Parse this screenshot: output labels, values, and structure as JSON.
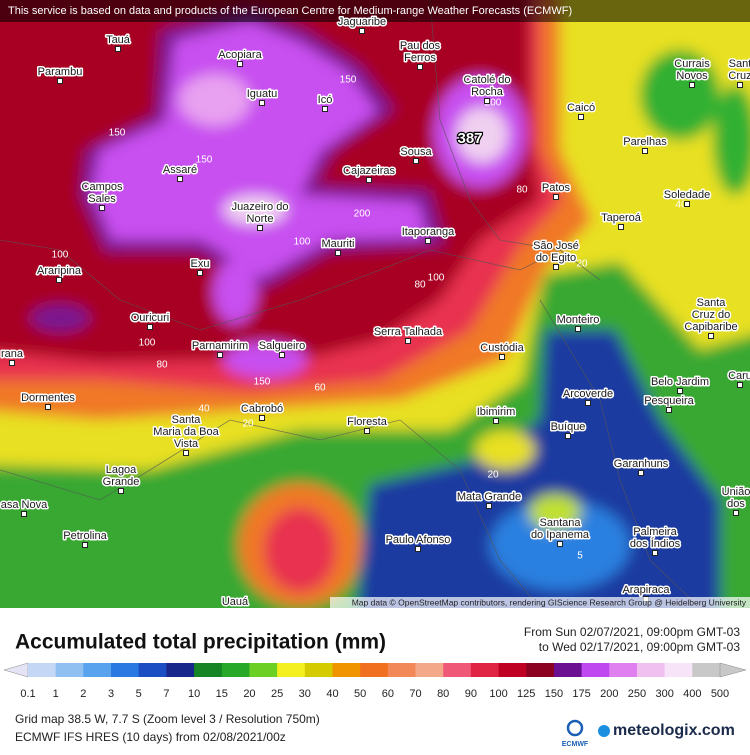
{
  "banner": "This service is based on data and products of the European Centre for Medium-range Weather Forecasts (ECMWF)",
  "attribution": "Map data © OpenStreetMap contributors, rendering GIScience Research Group @ Heidelberg University",
  "places": [
    [
      "Tauá"
    ],
    [
      "Parambu"
    ],
    [
      "Acopiara"
    ],
    [
      "Jaguaribe"
    ],
    [
      "Pau dos",
      "Ferros"
    ],
    [
      "Currais",
      "Novos"
    ],
    [
      "Sant",
      "Cruz"
    ],
    [
      "Catolé do",
      "Rocha"
    ],
    [
      "Iguatu"
    ],
    [
      "Icó"
    ],
    [
      "Caicó"
    ],
    [
      "Parelhas"
    ],
    [
      "Sousa"
    ],
    [
      "Cajazeiras"
    ],
    [
      "Assaré"
    ],
    [
      "Campos",
      "Sales"
    ],
    [
      "Patos"
    ],
    [
      "Soledade"
    ],
    [
      "Juazeiro do",
      "Norte"
    ],
    [
      "Taperoá"
    ],
    [
      "Itaporanga"
    ],
    [
      "Mauriti"
    ],
    [
      "São José",
      "do Egito"
    ],
    [
      "Araripina"
    ],
    [
      "Exu"
    ],
    [
      "Monteiro"
    ],
    [
      "Santa",
      "Cruz do",
      "Capibaribe"
    ],
    [
      "Ouricuri"
    ],
    [
      "Serra Talhada"
    ],
    [
      "Custódia"
    ],
    [
      "Parnamirim"
    ],
    [
      "Salgueiro"
    ],
    [
      "rana"
    ],
    [
      "Belo Jardim"
    ],
    [
      "Caru"
    ],
    [
      "Dormentes"
    ],
    [
      "Arcoverde"
    ],
    [
      "Pesqueira"
    ],
    [
      "Cabrobó"
    ],
    [
      "Ibimirim"
    ],
    [
      "Santa",
      "Maria da Boa",
      "Vista"
    ],
    [
      "Floresta"
    ],
    [
      "Buíque"
    ],
    [
      "Garanhuns"
    ],
    [
      "Lagoa",
      "Grande"
    ],
    [
      "Mata Grande"
    ],
    [
      "União",
      "dos"
    ],
    [
      "asa Nova"
    ],
    [
      "Santana",
      "do Ipanema"
    ],
    [
      "Petrolina"
    ],
    [
      "Paulo Afonso"
    ],
    [
      "Palmeira",
      "dos Índios"
    ],
    [
      "Arapiraca"
    ],
    [
      "Uauá"
    ]
  ],
  "contour_labels": [
    "387",
    "200",
    "150",
    "150",
    "150",
    "200",
    "100",
    "100",
    "80",
    "80",
    "40",
    "20",
    "100",
    "100",
    "80",
    "150",
    "60",
    "40",
    "20",
    "20",
    "5"
  ],
  "title": "Accumulated total precipitation (mm)",
  "period": [
    "From Sun 02/07/2021, 09:00pm GMT-03",
    "to Wed 02/17/2021, 09:00pm GMT-03"
  ],
  "legend": {
    "labels": [
      "0.1",
      "1",
      "2",
      "3",
      "5",
      "7",
      "10",
      "15",
      "20",
      "25",
      "30",
      "40",
      "50",
      "60",
      "70",
      "80",
      "90",
      "100",
      "125",
      "150",
      "175",
      "200",
      "250",
      "300",
      "400",
      "500"
    ],
    "colors": [
      "#e4e4f6",
      "#c4d8f6",
      "#90c0f2",
      "#58a2ee",
      "#2a78e2",
      "#1a4cc4",
      "#16268a",
      "#148424",
      "#28a828",
      "#6cd024",
      "#f4f020",
      "#d4cc00",
      "#f09400",
      "#f07020",
      "#f28858",
      "#f4a88a",
      "#f05878",
      "#e02444",
      "#c00022",
      "#8c0020",
      "#6a1090",
      "#c048f0",
      "#e080f0",
      "#f0c0f0",
      "#f8e4f8",
      "#c8c8c8"
    ]
  },
  "footer": [
    "Grid map 38.5 W, 7.7 S (Zoom level 3 / Resolution 750m)",
    "ECMWF IFS HRES (10 days) from 02/08/2021/00z"
  ],
  "logos": [
    "ECMWF",
    "meteologix.com"
  ]
}
